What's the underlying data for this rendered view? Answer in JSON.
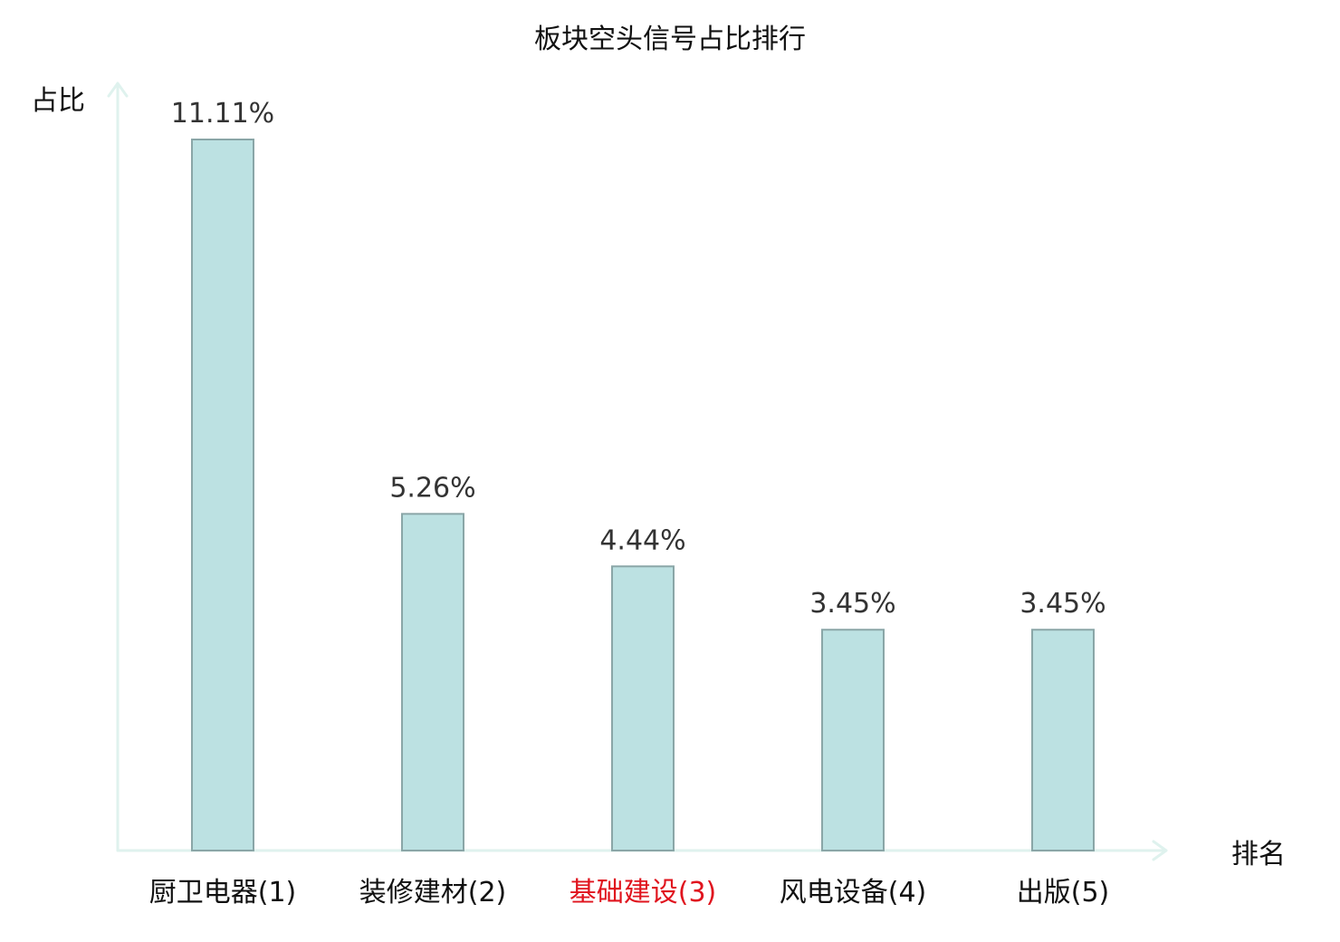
{
  "chart_data": {
    "type": "bar",
    "title": "板块空头信号占比排行",
    "ylabel": "占比",
    "xlabel": "排名",
    "categories": [
      "厨卫电器(1)",
      "装修建材(2)",
      "基础建设(3)",
      "风电设备(4)",
      "出版(5)"
    ],
    "values": [
      11.11,
      5.26,
      4.44,
      3.45,
      3.45
    ],
    "value_labels": [
      "11.11%",
      "5.26%",
      "4.44%",
      "3.45%",
      "3.45%"
    ],
    "highlight_index": 2,
    "ylim": [
      0,
      11.11
    ],
    "grid": false,
    "legend": "none"
  },
  "colors": {
    "bar_fill": "#bce1e2",
    "bar_stroke": "#8aa6a7",
    "axis": "#dff2ee",
    "highlight_text": "#e0141e",
    "normal_text": "#111111"
  }
}
